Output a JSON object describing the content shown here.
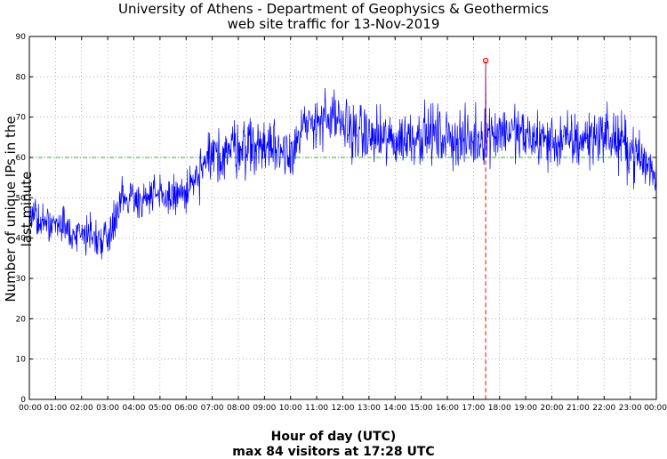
{
  "header": {
    "title_line1": "University of Athens - Department of Geophysics & Geothermics",
    "title_line2": "web site traffic for 13-Nov-2019"
  },
  "footer": {
    "summary": "max 84 visitors at 17:28 UTC"
  },
  "chart_data": {
    "type": "line",
    "xlabel": "Hour of day (UTC)",
    "ylabel": "Number of unique IPs in the last minute",
    "ylim": [
      0,
      90
    ],
    "yticks": [
      0,
      10,
      20,
      30,
      40,
      50,
      60,
      70,
      80,
      90
    ],
    "xlim": [
      "00:00",
      "24:00"
    ],
    "xtick_labels": [
      "00:00",
      "01:00",
      "02:00",
      "03:00",
      "04:00",
      "05:00",
      "06:00",
      "07:00",
      "08:00",
      "09:00",
      "10:00",
      "11:00",
      "12:00",
      "13:00",
      "14:00",
      "15:00",
      "16:00",
      "17:00",
      "18:00",
      "19:00",
      "20:00",
      "21:00",
      "22:00",
      "23:00",
      "00:00"
    ],
    "grid": true,
    "threshold_line": {
      "y": 60,
      "color": "#22bb22",
      "style": "dash-dot"
    },
    "max_marker": {
      "time": "17:28",
      "value": 84,
      "color": "#ff0000"
    },
    "series": [
      {
        "color": "#0000ff",
        "hourly_profile": [
          {
            "time": "00:00",
            "value": 45
          },
          {
            "time": "01:00",
            "value": 43
          },
          {
            "time": "02:00",
            "value": 41
          },
          {
            "time": "03:00",
            "value": 40
          },
          {
            "time": "03:30",
            "value": 50
          },
          {
            "time": "04:00",
            "value": 50
          },
          {
            "time": "05:00",
            "value": 50
          },
          {
            "time": "06:00",
            "value": 51
          },
          {
            "time": "07:00",
            "value": 60
          },
          {
            "time": "08:00",
            "value": 63
          },
          {
            "time": "09:00",
            "value": 63
          },
          {
            "time": "10:00",
            "value": 62
          },
          {
            "time": "11:00",
            "value": 70
          },
          {
            "time": "12:00",
            "value": 68
          },
          {
            "time": "13:00",
            "value": 65
          },
          {
            "time": "14:00",
            "value": 64
          },
          {
            "time": "15:00",
            "value": 66
          },
          {
            "time": "16:00",
            "value": 65
          },
          {
            "time": "17:00",
            "value": 64
          },
          {
            "time": "18:00",
            "value": 67
          },
          {
            "time": "19:00",
            "value": 65
          },
          {
            "time": "20:00",
            "value": 64
          },
          {
            "time": "21:00",
            "value": 64
          },
          {
            "time": "22:00",
            "value": 66
          },
          {
            "time": "23:00",
            "value": 62
          },
          {
            "time": "24:00",
            "value": 56
          }
        ]
      }
    ]
  }
}
